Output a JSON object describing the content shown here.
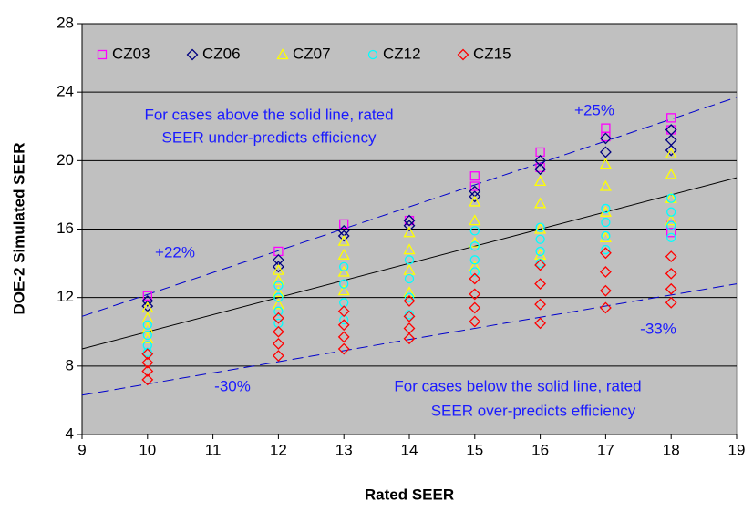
{
  "chart_data": {
    "type": "scatter",
    "x_label": "Rated SEER",
    "y_label": "DOE-2 Simulated SEER",
    "xlim": [
      9,
      19
    ],
    "xticks": [
      9,
      10,
      11,
      12,
      13,
      14,
      15,
      16,
      17,
      18,
      19
    ],
    "ylim": [
      4,
      28
    ],
    "yticks": [
      4,
      8,
      12,
      16,
      20,
      24,
      28
    ],
    "grid": true,
    "background": "#c0c0c0",
    "legend": "top-left",
    "series": [
      {
        "name": "CZ03",
        "color": "#ff00ff",
        "marker": "square",
        "x": [
          10,
          12,
          13,
          14,
          15,
          15,
          16,
          16,
          17,
          17,
          18,
          18,
          18,
          18
        ],
        "y": [
          12.1,
          14.7,
          16.3,
          16.5,
          19.1,
          18.5,
          20.5,
          19.6,
          21.9,
          21.4,
          22.5,
          21.8,
          16.2,
          15.8
        ]
      },
      {
        "name": "CZ06",
        "color": "#000080",
        "marker": "diamond",
        "x": [
          10,
          10,
          12,
          12,
          13,
          13,
          14,
          14,
          15,
          15,
          16,
          16,
          17,
          17,
          18,
          18,
          18
        ],
        "y": [
          11.8,
          11.5,
          14.2,
          13.8,
          15.9,
          15.6,
          16.5,
          16.2,
          18.2,
          17.9,
          20.0,
          19.5,
          21.3,
          20.5,
          21.8,
          21.2,
          20.6
        ]
      },
      {
        "name": "CZ07",
        "color": "#ffff00",
        "marker": "triangle",
        "x": [
          10,
          10,
          10,
          10,
          12,
          12,
          12,
          12,
          13,
          13,
          13,
          13,
          14,
          14,
          14,
          14,
          15,
          15,
          15,
          15,
          16,
          16,
          16,
          16,
          17,
          17,
          17,
          17,
          18,
          18,
          18,
          18
        ],
        "y": [
          11.4,
          10.8,
          10.2,
          9.6,
          13.6,
          13.0,
          12.3,
          11.6,
          15.3,
          14.5,
          13.5,
          12.4,
          15.8,
          14.8,
          13.6,
          12.3,
          17.6,
          16.5,
          15.2,
          13.8,
          18.8,
          17.5,
          16.0,
          14.5,
          19.8,
          18.5,
          17.0,
          15.5,
          20.4,
          19.2,
          17.8,
          16.5
        ]
      },
      {
        "name": "CZ12",
        "color": "#00ffff",
        "marker": "circle",
        "x": [
          10,
          10,
          10,
          10,
          12,
          12,
          12,
          12,
          13,
          13,
          13,
          13,
          14,
          14,
          14,
          14,
          15,
          15,
          15,
          15,
          16,
          16,
          16,
          16,
          17,
          17,
          17,
          17,
          18,
          18,
          18,
          18
        ],
        "y": [
          10.4,
          9.8,
          9.2,
          8.8,
          12.7,
          12.0,
          11.2,
          10.5,
          13.8,
          12.8,
          11.7,
          10.7,
          14.2,
          13.1,
          12.0,
          11.0,
          15.9,
          15.0,
          14.2,
          13.5,
          16.1,
          15.4,
          14.7,
          14.0,
          17.2,
          16.4,
          15.6,
          14.8,
          17.8,
          17.0,
          16.2,
          15.5
        ]
      },
      {
        "name": "CZ15",
        "color": "#ff0000",
        "marker": "diamond",
        "x": [
          10,
          10,
          10,
          10,
          12,
          12,
          12,
          12,
          13,
          13,
          13,
          13,
          14,
          14,
          14,
          14,
          15,
          15,
          15,
          15,
          16,
          16,
          16,
          16,
          17,
          17,
          17,
          17,
          18,
          18,
          18,
          18
        ],
        "y": [
          8.7,
          8.2,
          7.7,
          7.2,
          10.8,
          10.0,
          9.3,
          8.6,
          11.2,
          10.4,
          9.7,
          9.0,
          11.8,
          10.9,
          10.2,
          9.6,
          13.1,
          12.2,
          11.4,
          10.6,
          13.9,
          12.8,
          11.6,
          10.5,
          14.6,
          13.5,
          12.4,
          11.4,
          14.4,
          13.4,
          12.5,
          11.7
        ]
      }
    ],
    "lines": [
      {
        "x": [
          9,
          19
        ],
        "y": [
          9,
          19
        ],
        "color": "#000000",
        "style": "solid"
      },
      {
        "x": [
          9,
          19
        ],
        "y": [
          10.9,
          23.7
        ],
        "color": "#0000cc",
        "style": "dashed"
      },
      {
        "x": [
          9,
          19
        ],
        "y": [
          6.3,
          12.8
        ],
        "color": "#0000cc",
        "style": "dashed"
      }
    ],
    "annotations": [
      "For cases above the solid line, rated",
      "SEER under-predicts efficiency",
      "+25%",
      "+22%",
      "-30%",
      "-33%",
      "For cases below the solid line, rated",
      "SEER over-predicts efficiency"
    ]
  }
}
